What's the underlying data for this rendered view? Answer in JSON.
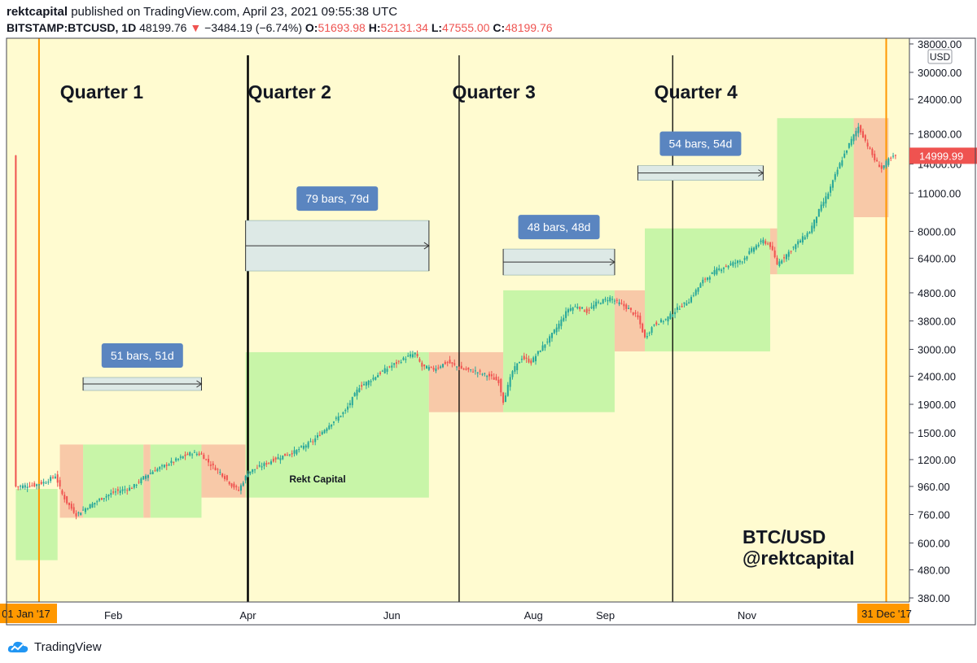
{
  "header": {
    "author": "rektcapital",
    "published": "published on TradingView.com, April 23, 2021 09:55:38 UTC",
    "symbol": "BITSTAMP:BTCUSD, 1D",
    "last": "48199.76",
    "change": "−3484.19 (−6.74%)",
    "o_label": "O:",
    "o": "51693.98",
    "h_label": "H:",
    "h": "52131.34",
    "l_label": "L:",
    "l": "47555.00",
    "c_label": "C:",
    "c": "48199.76"
  },
  "footer": {
    "brand": "TradingView"
  },
  "chart_data": {
    "type": "candlestick",
    "y_scale": "log",
    "ylim": [
      380,
      38000
    ],
    "y_ticks": [
      "38000.00",
      "30000.00",
      "24000.00",
      "18000.00",
      "14000.00",
      "11000.00",
      "8000.00",
      "6400.00",
      "4800.00",
      "3800.00",
      "3000.00",
      "2400.00",
      "1900.00",
      "1500.00",
      "1200.00",
      "960.00",
      "760.00",
      "600.00",
      "480.00",
      "380.00"
    ],
    "y_tick_values": [
      38000,
      30000,
      24000,
      18000,
      14000,
      11000,
      8000,
      6400,
      4800,
      3800,
      3000,
      2400,
      1900,
      1500,
      1200,
      960,
      760,
      600,
      480,
      380
    ],
    "currency": "USD",
    "last_price_label": "14999.99",
    "last_price": 14999.99,
    "x_ticks": [
      "Feb",
      "Apr",
      "Jun",
      "Aug",
      "Sep",
      "Nov"
    ],
    "x_tick_days": [
      32,
      90,
      152,
      213,
      244,
      305
    ],
    "x_start_label": "01 Jan '17",
    "x_end_label": "31 Dec '17",
    "quarters": [
      {
        "label": "Quarter 1",
        "day": 27
      },
      {
        "label": "Quarter 2",
        "day": 108
      },
      {
        "label": "Quarter 3",
        "day": 196
      },
      {
        "label": "Quarter 4",
        "day": 283
      }
    ],
    "quarter_lines": [
      90,
      181,
      273
    ],
    "measures": [
      {
        "label": "51 bars, 51d",
        "start": 19,
        "end": 70,
        "price": 2250
      },
      {
        "label": "79 bars, 79d",
        "start": 89,
        "end": 168,
        "price": 7100
      },
      {
        "label": "48 bars, 48d",
        "start": 200,
        "end": 248,
        "price": 6200
      },
      {
        "label": "54 bars, 54d",
        "start": 258,
        "end": 312,
        "price": 13000
      }
    ],
    "zones": [
      {
        "type": "up",
        "start": -10,
        "end": 8,
        "low": 520,
        "high": 940
      },
      {
        "type": "down",
        "start": 9,
        "end": 19,
        "low": 740,
        "high": 1360
      },
      {
        "type": "up",
        "start": 19,
        "end": 45,
        "low": 740,
        "high": 1360
      },
      {
        "type": "down",
        "start": 45,
        "end": 48,
        "low": 740,
        "high": 1360
      },
      {
        "type": "up",
        "start": 48,
        "end": 70,
        "low": 740,
        "high": 1360
      },
      {
        "type": "down",
        "start": 70,
        "end": 89,
        "low": 875,
        "high": 1360
      },
      {
        "type": "up",
        "start": 89,
        "end": 168,
        "low": 875,
        "high": 2930
      },
      {
        "type": "down",
        "start": 168,
        "end": 200,
        "low": 1780,
        "high": 2930
      },
      {
        "type": "up",
        "start": 200,
        "end": 248,
        "low": 1780,
        "high": 4900
      },
      {
        "type": "down",
        "start": 248,
        "end": 261,
        "low": 2950,
        "high": 4900
      },
      {
        "type": "up",
        "start": 261,
        "end": 315,
        "low": 2950,
        "high": 8200
      },
      {
        "type": "down",
        "start": 315,
        "end": 318,
        "low": 5600,
        "high": 8200
      },
      {
        "type": "up",
        "start": 318,
        "end": 351,
        "low": 5600,
        "high": 20500
      },
      {
        "type": "down",
        "start": 351,
        "end": 366,
        "low": 9000,
        "high": 20500
      }
    ],
    "price_path": [
      [
        -10,
        960
      ],
      [
        -2,
        970
      ],
      [
        3,
        1000
      ],
      [
        7,
        1050
      ],
      [
        10,
        900
      ],
      [
        12,
        840
      ],
      [
        16,
        760
      ],
      [
        21,
        810
      ],
      [
        28,
        880
      ],
      [
        33,
        920
      ],
      [
        40,
        950
      ],
      [
        46,
        1050
      ],
      [
        50,
        1100
      ],
      [
        55,
        1150
      ],
      [
        62,
        1230
      ],
      [
        66,
        1270
      ],
      [
        70,
        1250
      ],
      [
        74,
        1150
      ],
      [
        78,
        1080
      ],
      [
        83,
        970
      ],
      [
        86,
        930
      ],
      [
        90,
        1080
      ],
      [
        95,
        1130
      ],
      [
        102,
        1210
      ],
      [
        110,
        1280
      ],
      [
        118,
        1400
      ],
      [
        125,
        1600
      ],
      [
        132,
        1800
      ],
      [
        138,
        2200
      ],
      [
        142,
        2300
      ],
      [
        148,
        2500
      ],
      [
        153,
        2650
      ],
      [
        158,
        2800
      ],
      [
        162,
        2900
      ],
      [
        165,
        2600
      ],
      [
        170,
        2550
      ],
      [
        176,
        2700
      ],
      [
        182,
        2550
      ],
      [
        188,
        2500
      ],
      [
        194,
        2400
      ],
      [
        198,
        2300
      ],
      [
        200,
        1950
      ],
      [
        204,
        2500
      ],
      [
        208,
        2800
      ],
      [
        212,
        2700
      ],
      [
        216,
        3000
      ],
      [
        220,
        3300
      ],
      [
        224,
        3700
      ],
      [
        228,
        4200
      ],
      [
        232,
        4300
      ],
      [
        236,
        4100
      ],
      [
        240,
        4400
      ],
      [
        246,
        4600
      ],
      [
        250,
        4400
      ],
      [
        254,
        4200
      ],
      [
        258,
        3900
      ],
      [
        261,
        3300
      ],
      [
        265,
        3700
      ],
      [
        270,
        3850
      ],
      [
        275,
        4200
      ],
      [
        280,
        4500
      ],
      [
        286,
        5300
      ],
      [
        292,
        5800
      ],
      [
        298,
        6100
      ],
      [
        303,
        6300
      ],
      [
        308,
        7000
      ],
      [
        312,
        7400
      ],
      [
        315,
        7100
      ],
      [
        318,
        6100
      ],
      [
        322,
        6600
      ],
      [
        327,
        7300
      ],
      [
        332,
        8000
      ],
      [
        336,
        9500
      ],
      [
        340,
        11000
      ],
      [
        345,
        14000
      ],
      [
        349,
        16500
      ],
      [
        353,
        19100
      ],
      [
        356,
        17000
      ],
      [
        360,
        14500
      ],
      [
        363,
        13500
      ],
      [
        366,
        14500
      ],
      [
        369,
        15000
      ]
    ],
    "watermark": "Rekt Capital",
    "corner_text": [
      "BTC/USD",
      "@rektcapital"
    ]
  },
  "colors": {
    "background": "#fffbd0",
    "zone_up": "#c8f5a8",
    "zone_down": "#f8c9a8",
    "up_candle": "#26a69a",
    "down_candle": "#ef5350",
    "orange": "#ff9800",
    "measure_box": "#5a85c0",
    "measure_fill": "#dde9e6"
  }
}
